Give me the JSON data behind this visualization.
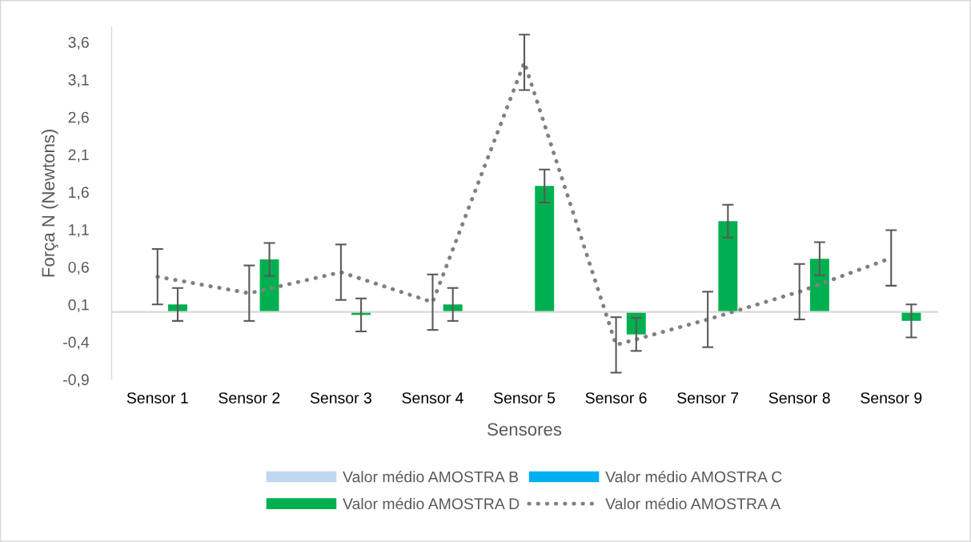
{
  "chart_data": {
    "type": "bar",
    "xlabel": "Sensores",
    "ylabel": "Força N (Newtons)",
    "categories": [
      "Sensor 1",
      "Sensor 2",
      "Sensor 3",
      "Sensor 4",
      "Sensor 5",
      "Sensor 6",
      "Sensor 7",
      "Sensor 8",
      "Sensor 9"
    ],
    "series": [
      {
        "name": "Valor médio AMOSTRA B",
        "color": "#bdd7ee",
        "values": [
          0,
          0,
          0,
          0,
          0,
          0,
          0,
          0,
          0
        ]
      },
      {
        "name": "Valor médio AMOSTRA C",
        "color": "#00b0f0",
        "values": [
          0,
          0,
          0,
          0,
          0,
          0,
          0,
          0,
          0
        ]
      },
      {
        "name": "Valor médio AMOSTRA D",
        "color": "#00b050",
        "values": [
          0.1,
          0.7,
          -0.04,
          0.1,
          1.68,
          -0.3,
          1.21,
          0.71,
          -0.12
        ],
        "errors": [
          0.22,
          0.22,
          0.22,
          0.22,
          0.22,
          0.22,
          0.22,
          0.22,
          0.22
        ]
      },
      {
        "name": "Valor médio AMOSTRA A",
        "color": "#808080",
        "type": "line",
        "line_style": "dotted",
        "values": [
          0.47,
          0.25,
          0.53,
          0.13,
          3.33,
          -0.44,
          -0.1,
          0.27,
          0.72
        ],
        "errors": [
          0.37,
          0.37,
          0.37,
          0.37,
          0.37,
          0.37,
          0.37,
          0.37,
          0.37
        ]
      }
    ],
    "ylim": [
      -0.9,
      3.8
    ],
    "yticks": [
      {
        "value": -0.9,
        "label": "-0,9"
      },
      {
        "value": -0.4,
        "label": "-0,4"
      },
      {
        "value": 0.1,
        "label": "0,1"
      },
      {
        "value": 0.6,
        "label": "0,6"
      },
      {
        "value": 1.1,
        "label": "1,1"
      },
      {
        "value": 1.6,
        "label": "1,6"
      },
      {
        "value": 2.1,
        "label": "2,1"
      },
      {
        "value": 2.6,
        "label": "2,6"
      },
      {
        "value": 3.1,
        "label": "3,1"
      },
      {
        "value": 3.6,
        "label": "3,6"
      }
    ],
    "grid": false,
    "legend": "bottom"
  }
}
